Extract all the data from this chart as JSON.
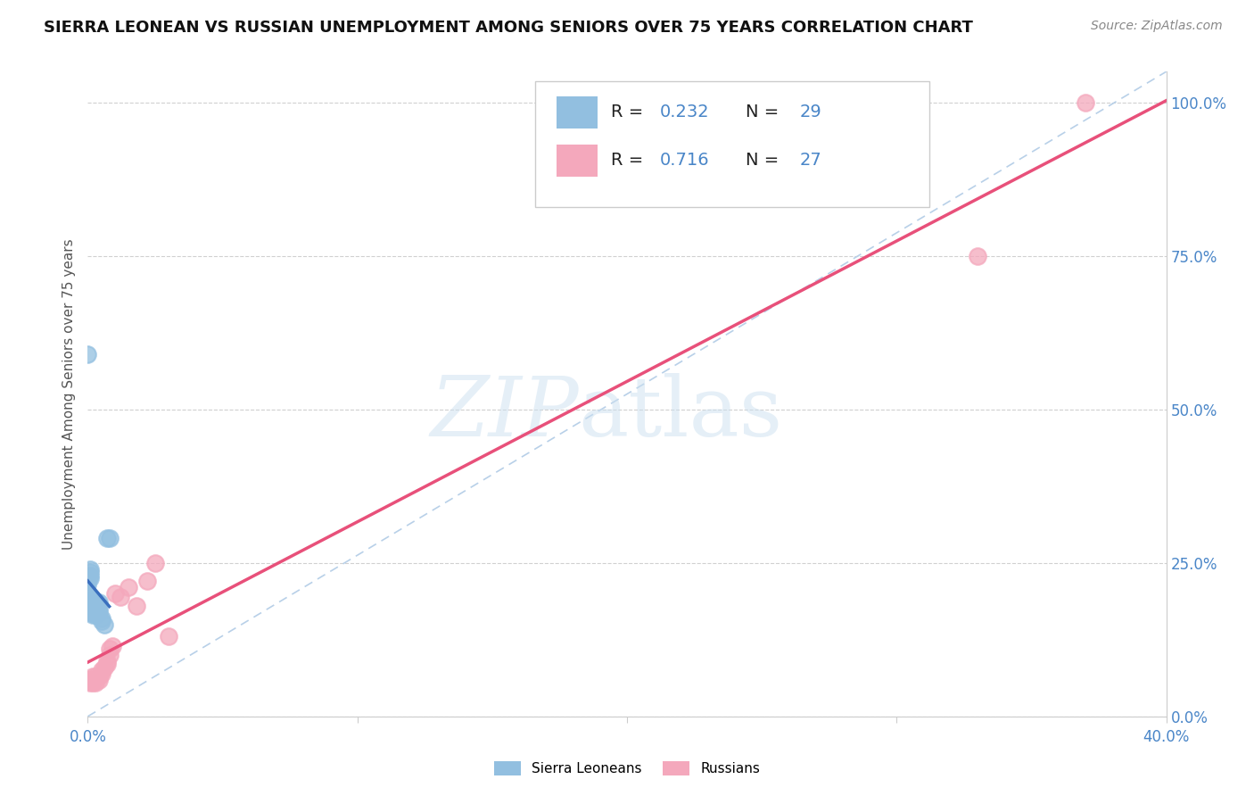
{
  "title": "SIERRA LEONEAN VS RUSSIAN UNEMPLOYMENT AMONG SENIORS OVER 75 YEARS CORRELATION CHART",
  "source": "Source: ZipAtlas.com",
  "ylabel": "Unemployment Among Seniors over 75 years",
  "background_color": "#ffffff",
  "sierra_leonean_x": [
    0.0,
    0.0,
    0.0,
    0.0,
    0.0,
    0.001,
    0.001,
    0.001,
    0.001,
    0.001,
    0.001,
    0.002,
    0.002,
    0.002,
    0.002,
    0.002,
    0.003,
    0.003,
    0.003,
    0.003,
    0.004,
    0.004,
    0.004,
    0.005,
    0.005,
    0.006,
    0.007,
    0.008,
    0.0
  ],
  "sierra_leonean_y": [
    0.22,
    0.215,
    0.2,
    0.195,
    0.185,
    0.24,
    0.235,
    0.23,
    0.225,
    0.175,
    0.17,
    0.19,
    0.185,
    0.175,
    0.17,
    0.165,
    0.18,
    0.175,
    0.17,
    0.165,
    0.185,
    0.175,
    0.17,
    0.16,
    0.155,
    0.15,
    0.29,
    0.29,
    0.59
  ],
  "russian_x": [
    0.0,
    0.001,
    0.001,
    0.002,
    0.002,
    0.002,
    0.003,
    0.003,
    0.004,
    0.004,
    0.005,
    0.005,
    0.006,
    0.007,
    0.007,
    0.008,
    0.008,
    0.009,
    0.01,
    0.012,
    0.015,
    0.018,
    0.022,
    0.025,
    0.03,
    0.37,
    0.33
  ],
  "russian_y": [
    0.06,
    0.055,
    0.06,
    0.055,
    0.06,
    0.065,
    0.055,
    0.065,
    0.06,
    0.065,
    0.07,
    0.075,
    0.08,
    0.085,
    0.09,
    0.1,
    0.11,
    0.115,
    0.2,
    0.195,
    0.21,
    0.18,
    0.22,
    0.25,
    0.13,
    1.0,
    0.75
  ],
  "sl_R": 0.232,
  "sl_N": 29,
  "ru_R": 0.716,
  "ru_N": 27,
  "sl_color": "#92bfe0",
  "ru_color": "#f4a8bc",
  "sl_line_color": "#3a6fbe",
  "ru_line_color": "#e8507a",
  "diagonal_color": "#b8d0e8",
  "xlim": [
    0.0,
    0.4
  ],
  "ylim": [
    0.0,
    1.05
  ],
  "xtick_positions": [
    0.0,
    0.1,
    0.2,
    0.3,
    0.4
  ],
  "ytick_positions": [
    0.0,
    0.25,
    0.5,
    0.75,
    1.0
  ],
  "ytick_labels": [
    "0.0%",
    "25.0%",
    "50.0%",
    "75.0%",
    "100.0%"
  ],
  "legend_sl_label": "Sierra Leoneans",
  "legend_ru_label": "Russians"
}
